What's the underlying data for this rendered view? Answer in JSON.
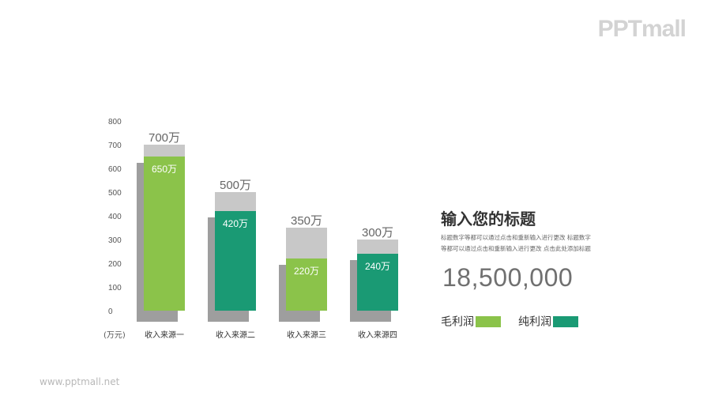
{
  "brand": {
    "logo_text": "PPTmall",
    "footer_url": "www.pptmall.net"
  },
  "info": {
    "title": "输入您的标题",
    "description_lines": [
      "标题数字等都可以通过点击和重新输入进行更改 标题数字",
      "等都可以通过点击和重新输入进行更改 点击此处添加标题"
    ],
    "big_number": "18,500,000"
  },
  "legend": [
    {
      "label": "毛利润",
      "color": "#8bc34a"
    },
    {
      "label": "纯利润",
      "color": "#1a9a74"
    }
  ],
  "colors": {
    "gross_light": "#8bc34a",
    "net_dark": "#1a9a74",
    "cap_gray": "#c8c8c8",
    "shadow_gray": "#9e9e9e",
    "text_gray": "#555555"
  },
  "chart_data": {
    "type": "bar",
    "categories": [
      "收入来源一",
      "收入来源二",
      "收入来源三",
      "收入来源四"
    ],
    "unit_label": "(万元)",
    "ylim": [
      0,
      800
    ],
    "yticks": [
      0,
      100,
      200,
      300,
      400,
      500,
      600,
      700,
      800
    ],
    "series": [
      {
        "values": [
          700,
          500,
          350,
          300
        ],
        "labels": [
          "700万",
          "500万",
          "350万",
          "300万"
        ]
      },
      {
        "values": [
          650,
          420,
          220,
          240
        ],
        "labels": [
          "650万",
          "420万",
          "220万",
          "240万"
        ]
      }
    ],
    "inner_colors": [
      "light",
      "dark",
      "light",
      "dark"
    ],
    "grid": false
  }
}
